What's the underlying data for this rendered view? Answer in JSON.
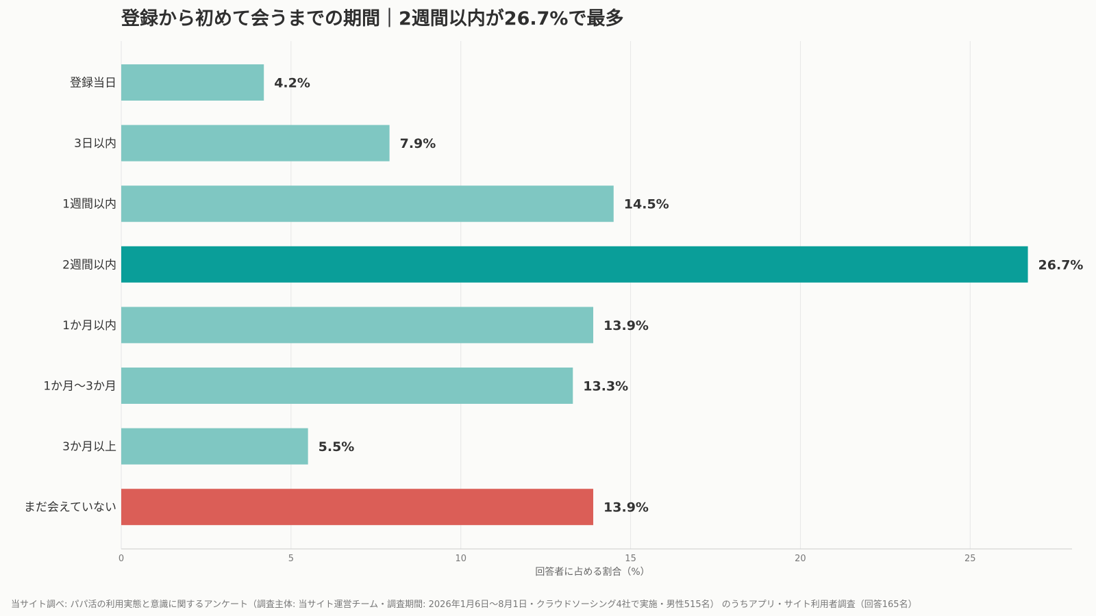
{
  "colors": {
    "background": "#fbfbf9",
    "bar_default": "#7fc7c2",
    "bar_highlight": "#0a9e99",
    "bar_not_met": "#db5e57",
    "grid": "#e6e6e6",
    "axis": "#cccccc"
  },
  "chart_data": {
    "type": "bar",
    "orientation": "horizontal",
    "title": "登録から初めて会うまでの期間｜2週間以内が26.7%で最多",
    "xlabel": "回答者に占める割合（%）",
    "ylabel": "",
    "xlim": [
      0,
      28
    ],
    "xticks": [
      0,
      5,
      10,
      15,
      20,
      25
    ],
    "grid": true,
    "categories": [
      "登録当日",
      "3日以内",
      "1週間以内",
      "2週間以内",
      "1か月以内",
      "1か月〜3か月",
      "3か月以上",
      "まだ会えていない"
    ],
    "values": [
      4.2,
      7.9,
      14.5,
      26.7,
      13.9,
      13.3,
      5.5,
      13.9
    ],
    "value_labels": [
      "4.2%",
      "7.9%",
      "14.5%",
      "26.7%",
      "13.9%",
      "13.3%",
      "5.5%",
      "13.9%"
    ],
    "bar_styles": [
      "default",
      "default",
      "default",
      "highlight",
      "default",
      "default",
      "default",
      "not_met"
    ]
  },
  "source_note": "当サイト調べ: パパ活の利用実態と意識に関するアンケート（調査主体: 当サイト運営チーム・調査期間: 2026年1月6日〜8月1日・クラウドソーシング4社で実施・男性515名） のうちアプリ・サイト利用者調査（回答165名）"
}
